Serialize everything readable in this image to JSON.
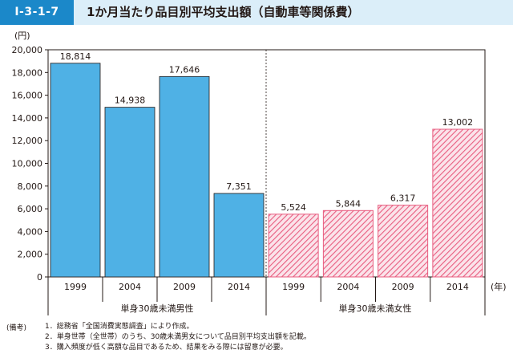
{
  "figure": {
    "id": "I-3-1-7",
    "title": "1か月当たり品目別平均支出額（自動車等関係費）"
  },
  "chart_data": {
    "type": "bar",
    "ylabel": "(円)",
    "xunit": "(年)",
    "ylim": [
      0,
      20000
    ],
    "yticks": [
      "0",
      "2,000",
      "4,000",
      "6,000",
      "8,000",
      "10,000",
      "12,000",
      "14,000",
      "16,000",
      "18,000",
      "20,000"
    ],
    "groups": [
      {
        "name": "単身30歳未満男性",
        "categories": [
          "1999",
          "2004",
          "2009",
          "2014"
        ],
        "values": [
          18814,
          14938,
          17646,
          7351
        ],
        "labels": [
          "18,814",
          "14,938",
          "17,646",
          "7,351"
        ],
        "fill": "solid",
        "color": "#4fb1e5"
      },
      {
        "name": "単身30歳未満女性",
        "categories": [
          "1999",
          "2004",
          "2009",
          "2014"
        ],
        "values": [
          5524,
          5844,
          6317,
          13002
        ],
        "labels": [
          "5,524",
          "5,844",
          "6,317",
          "13,002"
        ],
        "fill": "hatched",
        "color": "#e85c7f"
      }
    ]
  },
  "notes": {
    "label": "(備考)",
    "items": [
      "1．総務省「全国消費実態調査」により作成。",
      "2．単身世帯（全世帯）のうち、30歳未満男女について品目別平均支出額を記載。",
      "3．購入頻度が低く高額な品目であるため、結果をみる際には留意が必要。"
    ]
  }
}
